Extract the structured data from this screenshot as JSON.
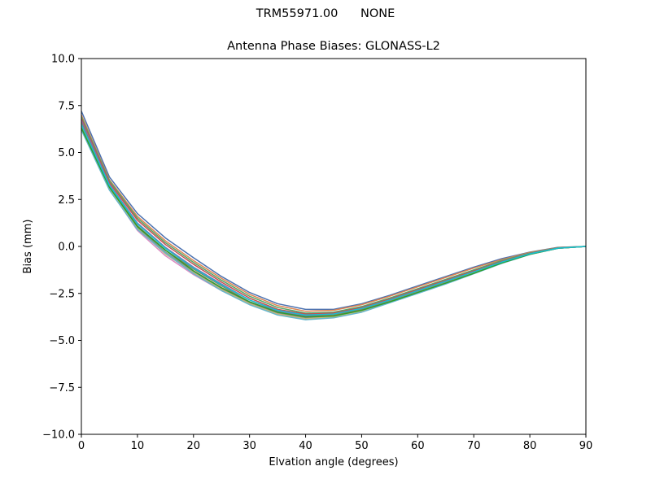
{
  "suptitle": "TRM55971.00      NONE",
  "chart_data": {
    "type": "line",
    "title": "Antenna Phase Biases: GLONASS-L2",
    "xlabel": "Elvation angle (degrees)",
    "ylabel": "Bias (mm)",
    "xlim": [
      0,
      90
    ],
    "ylim": [
      -10,
      10
    ],
    "xticks": [
      0,
      10,
      20,
      30,
      40,
      50,
      60,
      70,
      80,
      90
    ],
    "yticks": [
      -10.0,
      -7.5,
      -5.0,
      -2.5,
      0.0,
      2.5,
      5.0,
      7.5,
      10.0
    ],
    "ytick_labels": [
      "−10.0",
      "−7.5",
      "−5.0",
      "−2.5",
      "0.0",
      "2.5",
      "5.0",
      "7.5",
      "10.0"
    ],
    "grid": false,
    "legend": "none",
    "x": [
      0,
      5,
      10,
      15,
      20,
      25,
      30,
      35,
      40,
      45,
      50,
      55,
      60,
      65,
      70,
      75,
      80,
      85,
      90
    ],
    "series": [
      {
        "color": "#4c72b0",
        "values": [
          7.2,
          3.7,
          1.75,
          0.45,
          -0.6,
          -1.6,
          -2.45,
          -3.05,
          -3.35,
          -3.35,
          -3.05,
          -2.6,
          -2.1,
          -1.6,
          -1.1,
          -0.65,
          -0.3,
          -0.05,
          0.0
        ]
      },
      {
        "color": "#dd8452",
        "values": [
          7.0,
          3.55,
          1.6,
          0.3,
          -0.75,
          -1.7,
          -2.55,
          -3.15,
          -3.45,
          -3.4,
          -3.1,
          -2.65,
          -2.15,
          -1.65,
          -1.15,
          -0.7,
          -0.32,
          -0.06,
          0.0
        ]
      },
      {
        "color": "#55a868",
        "values": [
          6.9,
          3.5,
          1.5,
          0.2,
          -0.85,
          -1.8,
          -2.65,
          -3.25,
          -3.55,
          -3.5,
          -3.2,
          -2.75,
          -2.25,
          -1.75,
          -1.25,
          -0.75,
          -0.35,
          -0.07,
          0.0
        ]
      },
      {
        "color": "#c44e52",
        "values": [
          6.8,
          3.4,
          1.4,
          0.1,
          -0.95,
          -1.9,
          -2.75,
          -3.35,
          -3.6,
          -3.55,
          -3.25,
          -2.8,
          -2.3,
          -1.8,
          -1.3,
          -0.8,
          -0.37,
          -0.08,
          0.0
        ]
      },
      {
        "color": "#8172b3",
        "values": [
          6.7,
          3.3,
          1.25,
          -0.05,
          -1.1,
          -2.0,
          -2.85,
          -3.45,
          -3.7,
          -3.6,
          -3.3,
          -2.85,
          -2.35,
          -1.85,
          -1.35,
          -0.82,
          -0.39,
          -0.09,
          0.0
        ]
      },
      {
        "color": "#937860",
        "values": [
          6.6,
          3.2,
          1.1,
          -0.2,
          -1.2,
          -2.1,
          -2.95,
          -3.5,
          -3.75,
          -3.65,
          -3.35,
          -2.9,
          -2.4,
          -1.9,
          -1.4,
          -0.85,
          -0.4,
          -0.1,
          0.0
        ]
      },
      {
        "color": "#da8bc3",
        "values": [
          6.5,
          3.05,
          0.85,
          -0.5,
          -1.5,
          -2.35,
          -3.05,
          -3.6,
          -3.85,
          -3.75,
          -3.45,
          -2.95,
          -2.45,
          -1.95,
          -1.42,
          -0.88,
          -0.42,
          -0.1,
          0.0
        ]
      },
      {
        "color": "#8c8c8c",
        "values": [
          6.4,
          3.1,
          1.0,
          -0.3,
          -1.35,
          -2.25,
          -3.0,
          -3.55,
          -3.8,
          -3.7,
          -3.4,
          -2.92,
          -2.42,
          -1.92,
          -1.4,
          -0.86,
          -0.41,
          -0.1,
          0.0
        ]
      },
      {
        "color": "#ccb974",
        "values": [
          6.3,
          3.05,
          0.95,
          -0.4,
          -1.4,
          -2.3,
          -3.05,
          -3.6,
          -3.85,
          -3.75,
          -3.45,
          -2.95,
          -2.45,
          -1.95,
          -1.42,
          -0.87,
          -0.42,
          -0.1,
          0.0
        ]
      },
      {
        "color": "#64b5cd",
        "values": [
          6.2,
          3.0,
          0.9,
          -0.35,
          -1.45,
          -2.35,
          -3.1,
          -3.65,
          -3.9,
          -3.8,
          -3.5,
          -3.0,
          -2.5,
          -2.0,
          -1.45,
          -0.9,
          -0.43,
          -0.1,
          0.0
        ]
      },
      {
        "color": "#2ca02c",
        "values": [
          6.3,
          3.15,
          1.05,
          -0.2,
          -1.3,
          -2.2,
          -2.95,
          -3.5,
          -3.75,
          -3.7,
          -3.4,
          -2.95,
          -2.45,
          -1.95,
          -1.43,
          -0.88,
          -0.42,
          -0.1,
          0.0
        ]
      },
      {
        "color": "#17becf",
        "values": [
          6.5,
          3.25,
          1.2,
          -0.1,
          -1.15,
          -2.05,
          -2.85,
          -3.4,
          -3.65,
          -3.6,
          -3.3,
          -2.85,
          -2.35,
          -1.85,
          -1.35,
          -0.83,
          -0.39,
          -0.09,
          0.0
        ]
      }
    ]
  }
}
